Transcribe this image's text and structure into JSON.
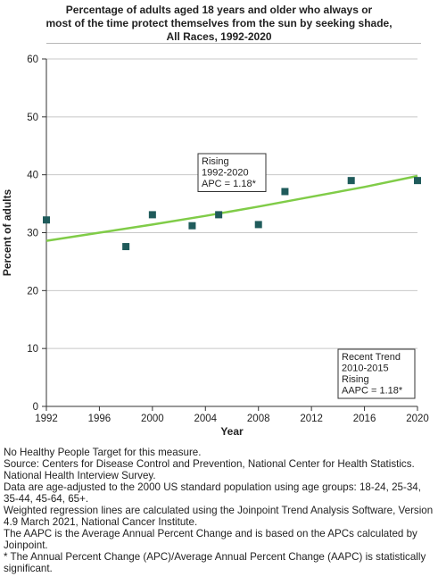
{
  "chart_data": {
    "type": "scatter",
    "title_lines": [
      "Percentage of adults aged 18 years and older who always or",
      "most of the time protect themselves from the sun by seeking shade,",
      "All Races,  1992-2020"
    ],
    "xlabel": "Year",
    "ylabel": "Percent of adults",
    "xlim": [
      1992,
      2020
    ],
    "ylim": [
      0,
      60
    ],
    "x_ticks": [
      1992,
      1996,
      2000,
      2004,
      2008,
      2012,
      2016,
      2020
    ],
    "y_ticks": [
      0,
      10,
      20,
      30,
      40,
      50,
      60
    ],
    "grid": "horizontal",
    "observed": {
      "x": [
        1992,
        1998,
        2000,
        2003,
        2005,
        2008,
        2010,
        2015,
        2020
      ],
      "y": [
        32.2,
        27.6,
        33.1,
        31.2,
        33.1,
        31.4,
        37.1,
        39.0,
        39.0
      ]
    },
    "trend_line": {
      "x": [
        1992,
        1996,
        2000,
        2004,
        2008,
        2012,
        2016,
        2020
      ],
      "y": [
        28.6,
        30.0,
        31.4,
        32.9,
        34.5,
        36.2,
        37.9,
        39.8
      ]
    },
    "colors": {
      "marker": "#1f5b5b",
      "trend": "#80cc48",
      "grid": "#c8c8c8",
      "axis": "#333333"
    },
    "annotations": [
      {
        "id": "rising",
        "lines": [
          "Rising",
          "1992-2020",
          "APC =  1.18*"
        ]
      },
      {
        "id": "recent",
        "lines": [
          "Recent Trend",
          "2010-2015",
          "Rising",
          "AAPC =  1.18*"
        ]
      }
    ]
  },
  "notes": [
    "No Healthy People Target for this measure.",
    "Source: Centers for Disease Control and Prevention, National Center for Health Statistics. National Health Interview Survey.",
    "Data are age-adjusted to the 2000 US standard population using age groups: 18-24, 25-34, 35-44, 45-64, 65+.",
    "Weighted regression lines are calculated using the Joinpoint Trend Analysis Software, Version 4.9 March 2021, National Cancer Institute.",
    "The AAPC is the Average Annual Percent Change and is based on the APCs calculated by Joinpoint.",
    "* The Annual Percent Change (APC)/Average Annual Percent Change (AAPC) is statistically significant."
  ]
}
